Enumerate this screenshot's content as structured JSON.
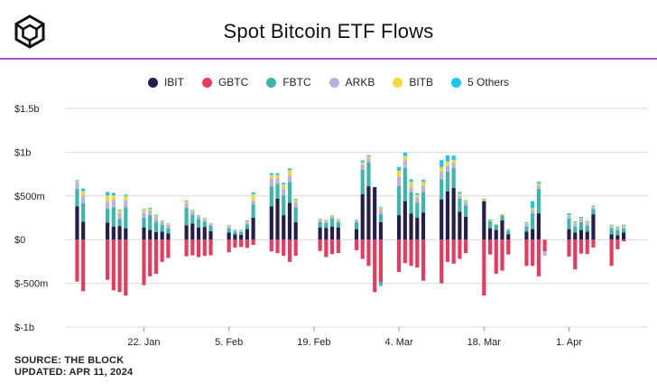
{
  "header": {
    "title": "Spot Bitcoin ETF Flows",
    "logo_icon": "cube-logo-icon"
  },
  "colors": {
    "IBIT": "#241e4e",
    "GBTC": "#e63b5f",
    "FBTC": "#3bb6a8",
    "ARKB": "#b9b2de",
    "BITB": "#f5d63d",
    "5 Others": "#1bc5ee",
    "accent_rule": "#b04fc9",
    "grid": "#d9d9d9"
  },
  "footer": {
    "source": "SOURCE: THE BLOCK",
    "updated": "UPDATED: APR 11, 2024"
  },
  "chart_data": {
    "type": "bar",
    "stacked": true,
    "title": "Spot Bitcoin ETF Flows",
    "legend_position": "top-center",
    "grid": true,
    "y_unit": "USD millions",
    "ylim": [
      -1000,
      1500
    ],
    "y_ticks": [
      {
        "value": 1500,
        "label": "$1.5b"
      },
      {
        "value": 1000,
        "label": "$1b"
      },
      {
        "value": 500,
        "label": "$500m"
      },
      {
        "value": 0,
        "label": "$0"
      },
      {
        "value": -500,
        "label": "$-500m"
      },
      {
        "value": -1000,
        "label": "$-1b"
      }
    ],
    "x_ticks": [
      {
        "date": "2024-01-22",
        "label": "22. Jan"
      },
      {
        "date": "2024-02-05",
        "label": "5. Feb"
      },
      {
        "date": "2024-02-19",
        "label": "19. Feb"
      },
      {
        "date": "2024-03-04",
        "label": "4. Mar"
      },
      {
        "date": "2024-03-18",
        "label": "18. Mar"
      },
      {
        "date": "2024-04-01",
        "label": "1. Apr"
      }
    ],
    "series_names": [
      "IBIT",
      "GBTC",
      "FBTC",
      "ARKB",
      "BITB",
      "5 Others"
    ],
    "dates": [
      "2024-01-11",
      "2024-01-12",
      "2024-01-16",
      "2024-01-17",
      "2024-01-18",
      "2024-01-19",
      "2024-01-22",
      "2024-01-23",
      "2024-01-24",
      "2024-01-25",
      "2024-01-26",
      "2024-01-29",
      "2024-01-30",
      "2024-01-31",
      "2024-02-01",
      "2024-02-02",
      "2024-02-05",
      "2024-02-06",
      "2024-02-07",
      "2024-02-08",
      "2024-02-09",
      "2024-02-12",
      "2024-02-13",
      "2024-02-14",
      "2024-02-15",
      "2024-02-16",
      "2024-02-20",
      "2024-02-21",
      "2024-02-22",
      "2024-02-23",
      "2024-02-26",
      "2024-02-27",
      "2024-02-28",
      "2024-02-29",
      "2024-03-01",
      "2024-03-04",
      "2024-03-05",
      "2024-03-06",
      "2024-03-07",
      "2024-03-08",
      "2024-03-11",
      "2024-03-12",
      "2024-03-13",
      "2024-03-14",
      "2024-03-15",
      "2024-03-18",
      "2024-03-19",
      "2024-03-20",
      "2024-03-21",
      "2024-03-22",
      "2024-03-25",
      "2024-03-26",
      "2024-03-27",
      "2024-03-28",
      "2024-04-01",
      "2024-04-02",
      "2024-04-03",
      "2024-04-04",
      "2024-04-05",
      "2024-04-08",
      "2024-04-09",
      "2024-04-10"
    ],
    "series": [
      {
        "name": "IBIT",
        "values": [
          380,
          205,
          195,
          150,
          155,
          130,
          140,
          110,
          85,
          90,
          70,
          165,
          185,
          140,
          145,
          95,
          80,
          60,
          55,
          120,
          250,
          380,
          470,
          280,
          420,
          200,
          140,
          135,
          150,
          140,
          120,
          520,
          610,
          600,
          200,
          280,
          440,
          300,
          250,
          310,
          460,
          550,
          590,
          320,
          260,
          440,
          130,
          110,
          220,
          60,
          90,
          120,
          300,
          0,
          120,
          80,
          110,
          90,
          290,
          60,
          50,
          80
        ]
      },
      {
        "name": "GBTC",
        "values": [
          -480,
          -590,
          -460,
          -580,
          -600,
          -640,
          -520,
          -420,
          -390,
          -255,
          -210,
          -190,
          -180,
          -200,
          -185,
          -180,
          -145,
          -90,
          -85,
          -95,
          -60,
          -135,
          -155,
          -185,
          -255,
          -185,
          -130,
          -200,
          -165,
          -155,
          -120,
          -220,
          -300,
          -600,
          -490,
          -370,
          -270,
          -300,
          -320,
          -470,
          -500,
          -255,
          -275,
          -220,
          -155,
          -640,
          -170,
          -390,
          -355,
          -170,
          -300,
          -300,
          -420,
          -135,
          -195,
          -340,
          -160,
          -165,
          -90,
          -300,
          -110,
          -20
        ]
      },
      {
        "name": "FBTC",
        "values": [
          200,
          210,
          160,
          220,
          80,
          240,
          110,
          170,
          120,
          80,
          60,
          200,
          100,
          95,
          60,
          65,
          50,
          30,
          30,
          55,
          150,
          230,
          170,
          225,
          240,
          170,
          60,
          55,
          90,
          60,
          80,
          280,
          270,
          0,
          90,
          330,
          380,
          240,
          170,
          235,
          230,
          230,
          230,
          150,
          130,
          0,
          80,
          60,
          60,
          40,
          60,
          180,
          280,
          0,
          120,
          70,
          90,
          70,
          60,
          70,
          60,
          50
        ]
      },
      {
        "name": "ARKB",
        "values": [
          80,
          90,
          75,
          85,
          70,
          80,
          60,
          55,
          50,
          35,
          40,
          50,
          35,
          30,
          28,
          20,
          20,
          15,
          15,
          20,
          50,
          90,
          60,
          75,
          75,
          55,
          25,
          20,
          25,
          20,
          20,
          55,
          50,
          0,
          50,
          110,
          85,
          60,
          60,
          70,
          90,
          65,
          60,
          35,
          35,
          0,
          0,
          0,
          0,
          0,
          30,
          40,
          40,
          0,
          30,
          40,
          40,
          30,
          20,
          20,
          20,
          15
        ]
      },
      {
        "name": "BITB",
        "values": [
          10,
          50,
          75,
          50,
          30,
          50,
          30,
          20,
          20,
          10,
          10,
          20,
          15,
          10,
          10,
          5,
          10,
          5,
          5,
          15,
          70,
          40,
          40,
          50,
          60,
          30,
          10,
          10,
          10,
          10,
          5,
          30,
          20,
          0,
          20,
          70,
          50,
          60,
          30,
          50,
          50,
          50,
          30,
          20,
          15,
          15,
          10,
          10,
          10,
          10,
          10,
          20,
          20,
          0,
          10,
          10,
          10,
          10,
          10,
          10,
          10,
          15
        ]
      },
      {
        "name": "5 Others",
        "values": [
          10,
          30,
          40,
          30,
          10,
          15,
          10,
          10,
          10,
          5,
          5,
          10,
          5,
          5,
          5,
          5,
          5,
          5,
          5,
          10,
          20,
          20,
          20,
          20,
          20,
          10,
          5,
          5,
          5,
          5,
          5,
          20,
          15,
          0,
          10,
          40,
          40,
          30,
          20,
          20,
          80,
          70,
          50,
          20,
          10,
          10,
          10,
          0,
          0,
          10,
          10,
          80,
          20,
          0,
          20,
          10,
          10,
          10,
          10,
          10,
          10,
          10
        ]
      }
    ],
    "negative_extra": [
      {
        "date": "2024-03-01",
        "series": "5 Others",
        "value": -40
      },
      {
        "date": "2024-03-28",
        "series": "ARKB",
        "value": -50
      }
    ]
  }
}
